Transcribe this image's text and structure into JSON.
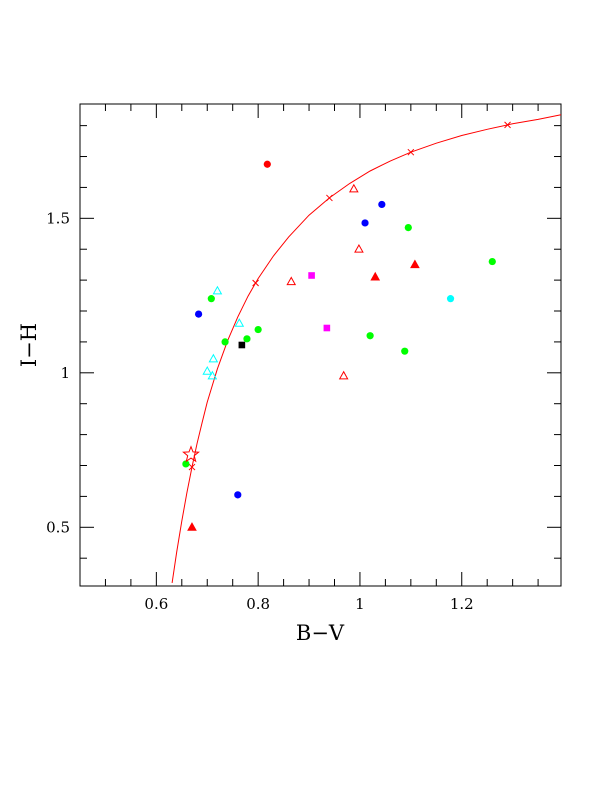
{
  "chart_data": {
    "type": "scatter",
    "title": "",
    "xlabel": "B−V",
    "ylabel": "I−H",
    "xlim": [
      0.45,
      1.395
    ],
    "ylim": [
      0.31,
      1.87
    ],
    "x_ticks": [
      {
        "value": 0.6,
        "label": "0.6"
      },
      {
        "value": 0.8,
        "label": "0.8"
      },
      {
        "value": 1.0,
        "label": "1"
      },
      {
        "value": 1.2,
        "label": "1.2"
      }
    ],
    "y_ticks": [
      {
        "value": 0.5,
        "label": "0.5"
      },
      {
        "value": 1.0,
        "label": "1"
      },
      {
        "value": 1.5,
        "label": "1.5"
      }
    ],
    "x_minor_step": 0.05,
    "y_minor_step": 0.1,
    "curve": {
      "color": "#ff0000",
      "x": [
        0.631,
        0.64,
        0.65,
        0.66,
        0.67,
        0.68,
        0.69,
        0.7,
        0.72,
        0.74,
        0.76,
        0.78,
        0.8,
        0.83,
        0.86,
        0.9,
        0.94,
        0.98,
        1.02,
        1.06,
        1.1,
        1.15,
        1.2,
        1.25,
        1.3,
        1.35,
        1.395
      ],
      "y": [
        0.32,
        0.42,
        0.52,
        0.612,
        0.695,
        0.772,
        0.84,
        0.905,
        1.013,
        1.104,
        1.181,
        1.248,
        1.305,
        1.378,
        1.44,
        1.51,
        1.566,
        1.613,
        1.653,
        1.686,
        1.714,
        1.743,
        1.768,
        1.788,
        1.806,
        1.82,
        1.835
      ],
      "markers_x": [
        0.67,
        0.795,
        0.94,
        1.1,
        1.29
      ],
      "marker_symbol": "cross"
    },
    "series": [
      {
        "symbol": "circle",
        "color": "#00ff00",
        "points": [
          [
            0.658,
            0.705
          ],
          [
            0.708,
            1.24
          ],
          [
            0.735,
            1.1
          ],
          [
            0.778,
            1.11
          ],
          [
            0.8,
            1.14
          ],
          [
            1.02,
            1.12
          ],
          [
            1.088,
            1.07
          ],
          [
            1.095,
            1.47
          ],
          [
            1.26,
            1.36
          ]
        ]
      },
      {
        "symbol": "circle",
        "color": "#0000ff",
        "points": [
          [
            0.683,
            1.19
          ],
          [
            0.76,
            0.605
          ],
          [
            1.01,
            1.485
          ],
          [
            1.043,
            1.545
          ]
        ]
      },
      {
        "symbol": "circle",
        "color": "#ff0000",
        "points": [
          [
            0.818,
            1.675
          ]
        ]
      },
      {
        "symbol": "circle",
        "color": "#00ffff",
        "points": [
          [
            1.178,
            1.24
          ]
        ]
      },
      {
        "symbol": "square",
        "color": "#ff00ff",
        "points": [
          [
            0.905,
            1.315
          ],
          [
            0.935,
            1.145
          ]
        ]
      },
      {
        "symbol": "square",
        "color": "#000000",
        "points": [
          [
            0.768,
            1.09
          ]
        ]
      },
      {
        "symbol": "triangle-filled",
        "color": "#ff0000",
        "points": [
          [
            0.67,
            0.5
          ],
          [
            1.03,
            1.31
          ],
          [
            1.108,
            1.35
          ]
        ]
      },
      {
        "symbol": "triangle-open",
        "color": "#ff0000",
        "points": [
          [
            0.865,
            1.295
          ],
          [
            0.968,
            0.99
          ],
          [
            0.988,
            1.595
          ],
          [
            0.998,
            1.4
          ]
        ]
      },
      {
        "symbol": "triangle-open",
        "color": "#00ffff",
        "points": [
          [
            0.7,
            1.005
          ],
          [
            0.71,
            0.99
          ],
          [
            0.712,
            1.045
          ],
          [
            0.72,
            1.265
          ],
          [
            0.763,
            1.16
          ]
        ]
      },
      {
        "symbol": "star-open",
        "color": "#ff0000",
        "points": [
          [
            0.668,
            0.735
          ]
        ]
      }
    ]
  }
}
